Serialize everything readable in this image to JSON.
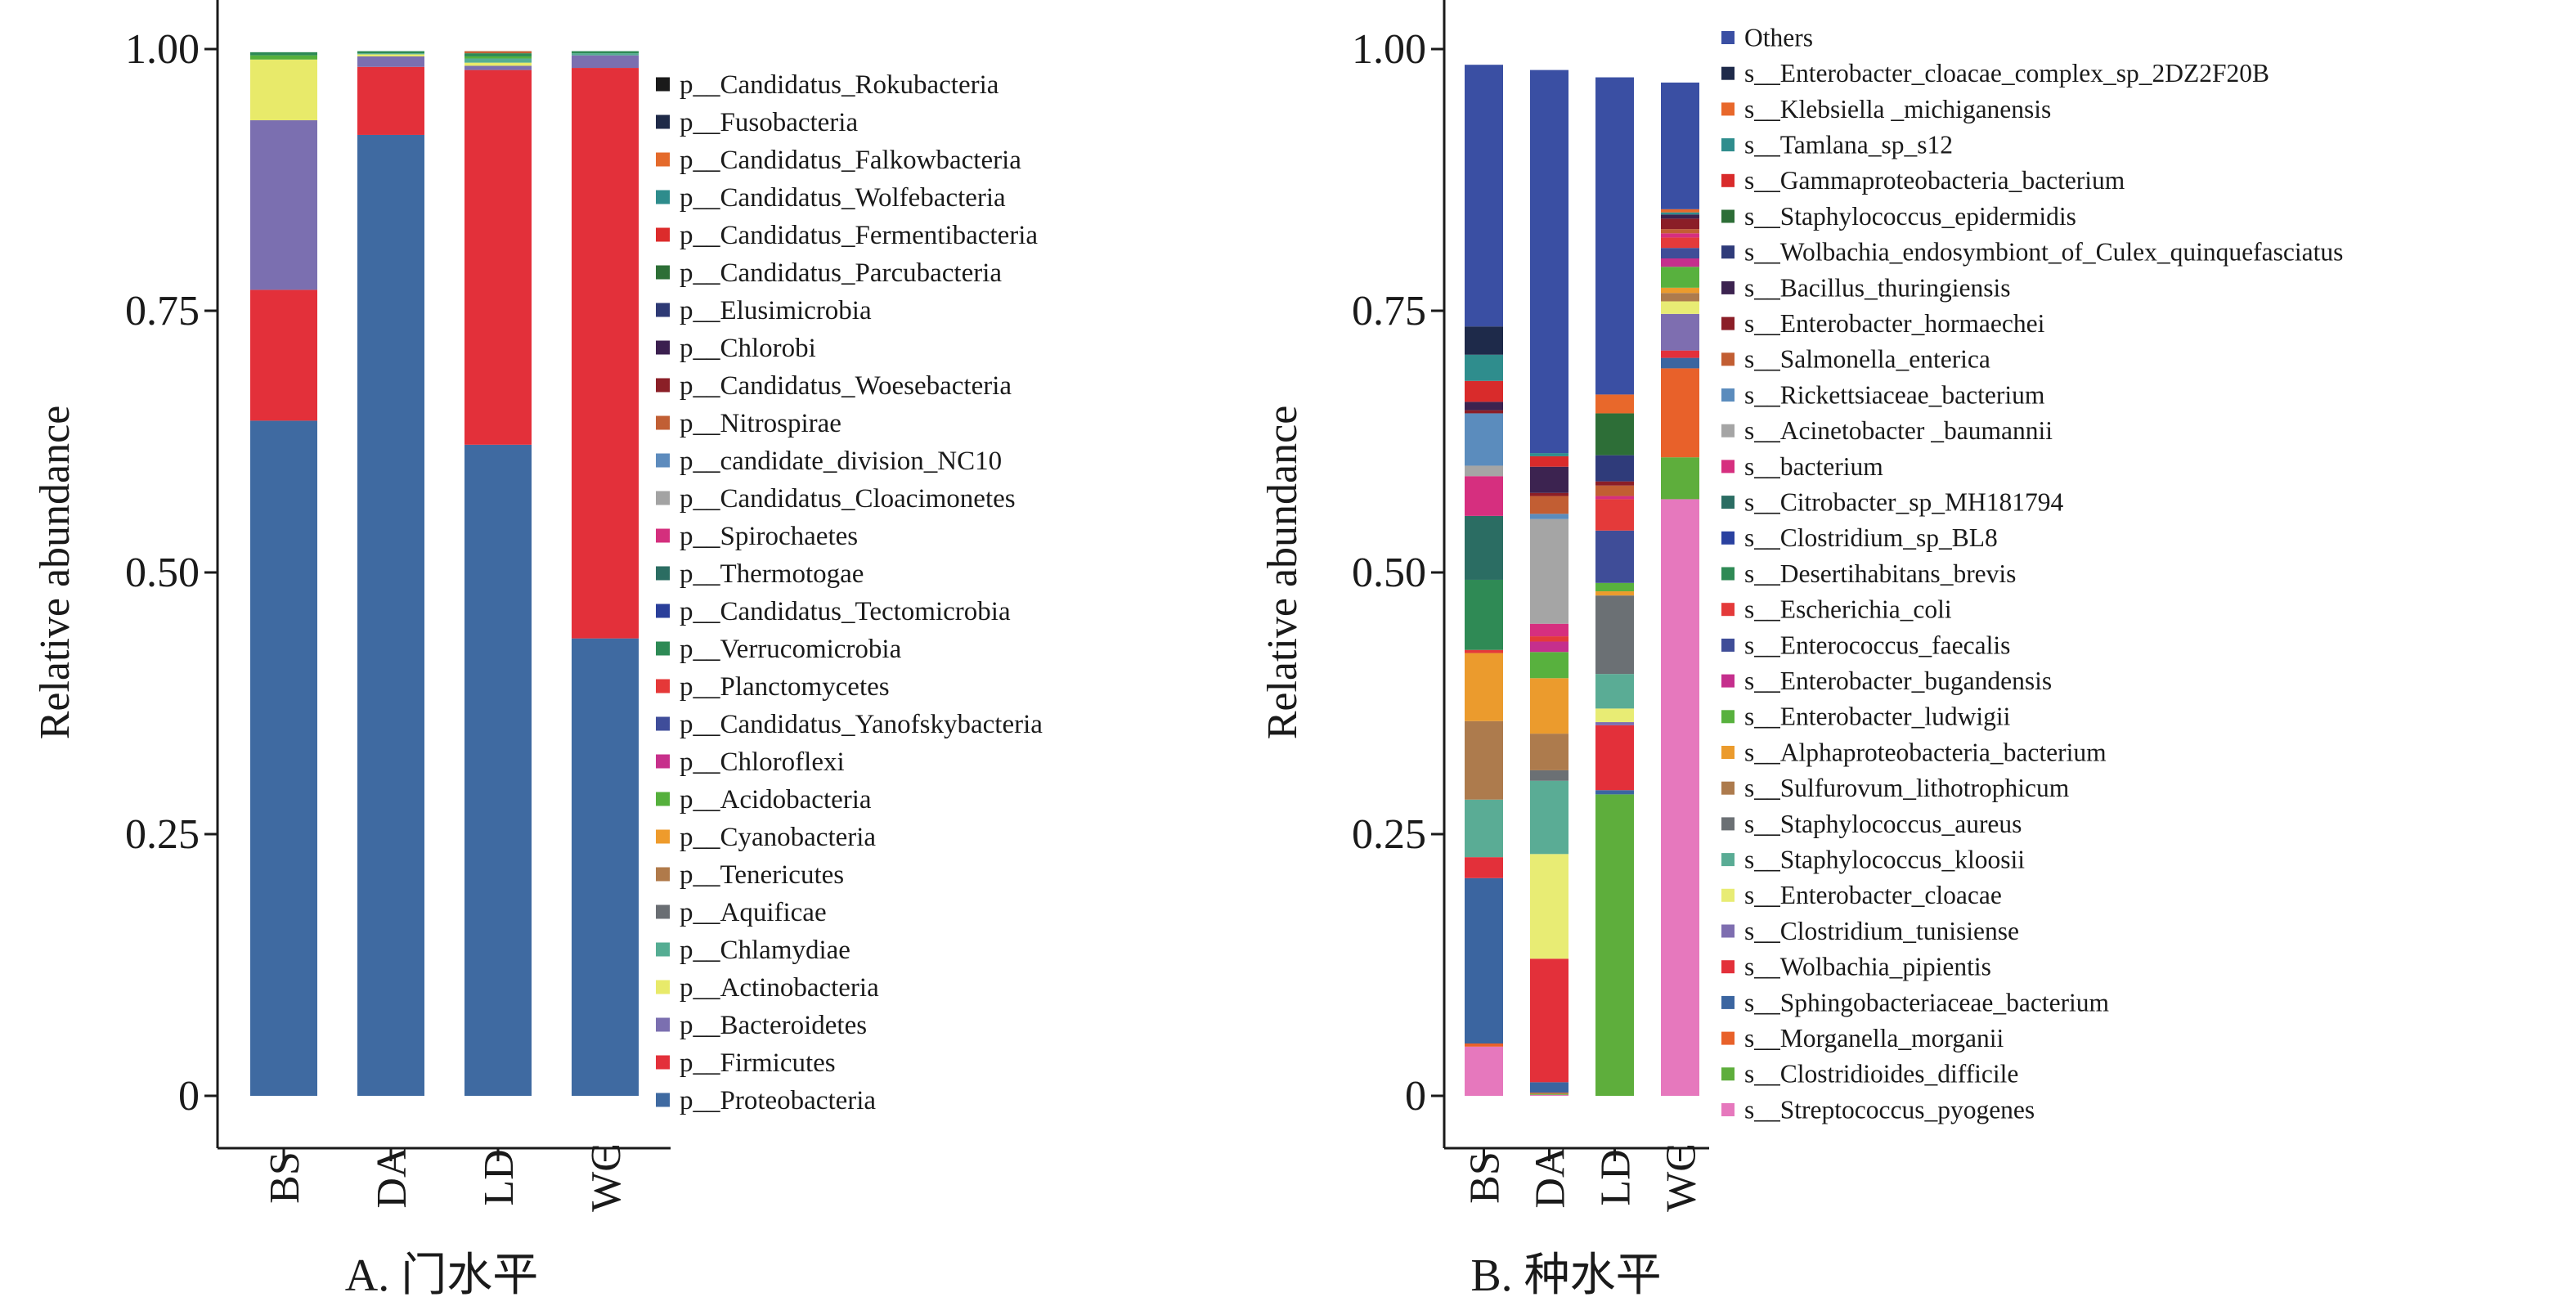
{
  "chart_data": [
    {
      "type": "bar",
      "stacked": true,
      "title": "A. 门水平",
      "xlabel": "",
      "ylabel": "Relative abundance",
      "ylim": [
        0,
        1
      ],
      "yticks": [
        "0",
        "0.25",
        "0.50",
        "0.75",
        "1.00"
      ],
      "ytick_values": [
        0,
        0.25,
        0.5,
        0.75,
        1.0
      ],
      "categories": [
        "BS",
        "DA",
        "LD",
        "WC"
      ],
      "legend_position": "right",
      "legend_order": "top-to-bottom = last series to first series",
      "series": [
        {
          "name": "p__Proteobacteria",
          "color": "#3f6aa1",
          "values": [
            0.645,
            0.918,
            0.622,
            0.437
          ]
        },
        {
          "name": "p__Firmicutes",
          "color": "#e3303a",
          "values": [
            0.125,
            0.065,
            0.358,
            0.545
          ]
        },
        {
          "name": "p__Bacteroidetes",
          "color": "#7b6fb0",
          "values": [
            0.162,
            0.01,
            0.004,
            0.012
          ]
        },
        {
          "name": "p__Actinobacteria",
          "color": "#e8ea6a",
          "values": [
            0.058,
            0.002,
            0.003,
            0.0
          ]
        },
        {
          "name": "p__Chlamydiae",
          "color": "#55ad93",
          "values": [
            0.0,
            0.001,
            0.004,
            0.002
          ]
        },
        {
          "name": "p__Aquificae",
          "color": "#6a6e73",
          "values": [
            0.0,
            0.0,
            0.0,
            0.0
          ]
        },
        {
          "name": "p__Tenericutes",
          "color": "#b07a4a",
          "values": [
            0.0,
            0.0,
            0.0,
            0.0
          ]
        },
        {
          "name": "p__Cyanobacteria",
          "color": "#ee9b2c",
          "values": [
            0.0,
            0.0,
            0.0,
            0.0
          ]
        },
        {
          "name": "p__Acidobacteria",
          "color": "#55b03c",
          "values": [
            0.004,
            0.0,
            0.002,
            0.0
          ]
        },
        {
          "name": "p__Chloroflexi",
          "color": "#c7308b",
          "values": [
            0.0,
            0.0,
            0.0,
            0.0
          ]
        },
        {
          "name": "p__Candidatus_Yanofskybacteria",
          "color": "#3f4d9a",
          "values": [
            0.0,
            0.0,
            0.0,
            0.0
          ]
        },
        {
          "name": "p__Planctomycetes",
          "color": "#e53838",
          "values": [
            0.0,
            0.0,
            0.0,
            0.0
          ]
        },
        {
          "name": "p__Verrucomicrobia",
          "color": "#2d8a55",
          "values": [
            0.003,
            0.002,
            0.003,
            0.002
          ]
        },
        {
          "name": "p__Candidatus_Tectomicrobia",
          "color": "#2a3f9a",
          "values": [
            0.0,
            0.0,
            0.0,
            0.0
          ]
        },
        {
          "name": "p__Thermotogae",
          "color": "#2b6d62",
          "values": [
            0.0,
            0.0,
            0.0,
            0.0
          ]
        },
        {
          "name": "p__Spirochaetes",
          "color": "#d42f7d",
          "values": [
            0.0,
            0.0,
            0.0,
            0.0
          ]
        },
        {
          "name": "p__Candidatus_Cloacimonetes",
          "color": "#a3a3a3",
          "values": [
            0.0,
            0.0,
            0.0,
            0.0
          ]
        },
        {
          "name": "p__candidate_division_NC10",
          "color": "#5d8bbd",
          "values": [
            0.0,
            0.0,
            0.0,
            0.0
          ]
        },
        {
          "name": "p__Nitrospirae",
          "color": "#c15f34",
          "values": [
            0.0,
            0.0,
            0.002,
            0.0
          ]
        },
        {
          "name": "p__Candidatus_Woesebacteria",
          "color": "#8b1f27",
          "values": [
            0.0,
            0.0,
            0.0,
            0.0
          ]
        },
        {
          "name": "p__Chlorobi",
          "color": "#3b1f4f",
          "values": [
            0.0,
            0.0,
            0.0,
            0.0
          ]
        },
        {
          "name": "p__Elusimicrobia",
          "color": "#2e3a75",
          "values": [
            0.0,
            0.0,
            0.0,
            0.0
          ]
        },
        {
          "name": "p__Candidatus_Parcubacteria",
          "color": "#2d6f36",
          "values": [
            0.0,
            0.0,
            0.0,
            0.0
          ]
        },
        {
          "name": "p__Candidatus_Fermentibacteria",
          "color": "#dc2b2b",
          "values": [
            0.0,
            0.0,
            0.0,
            0.0
          ]
        },
        {
          "name": "p__Candidatus_Wolfebacteria",
          "color": "#2e8c8c",
          "values": [
            0.0,
            0.0,
            0.0,
            0.0
          ]
        },
        {
          "name": "p__Candidatus_Falkowbacteria",
          "color": "#e46a2b",
          "values": [
            0.0,
            0.0,
            0.0,
            0.0
          ]
        },
        {
          "name": "p__Fusobacteria",
          "color": "#1f2a48",
          "values": [
            0.0,
            0.0,
            0.0,
            0.0
          ]
        },
        {
          "name": "p__Candidatus_Rokubacteria",
          "color": "#1a1a1a",
          "values": [
            0.0,
            0.0,
            0.0,
            0.0
          ]
        }
      ]
    },
    {
      "type": "bar",
      "stacked": true,
      "title": "B. 种水平",
      "xlabel": "",
      "ylabel": "Relative abundance",
      "ylim": [
        0,
        1
      ],
      "yticks": [
        "0",
        "0.25",
        "0.50",
        "0.75",
        "1.00"
      ],
      "ytick_values": [
        0,
        0.25,
        0.5,
        0.75,
        1.0
      ],
      "categories": [
        "BS",
        "DA",
        "LD",
        "WC"
      ],
      "legend_position": "right",
      "legend_order": "top-to-bottom = last series to first series",
      "series": [
        {
          "name": "s__Streptococcus_pyogenes",
          "color": "#e678bd",
          "values": [
            0.047,
            0.001,
            0.0,
            0.57
          ]
        },
        {
          "name": "s__Clostridioides_difficile",
          "color": "#5eae3c",
          "values": [
            0.0,
            0.001,
            0.288,
            0.04
          ]
        },
        {
          "name": "s__Morganella_morganii",
          "color": "#e8612a",
          "values": [
            0.003,
            0.001,
            0.0,
            0.085
          ]
        },
        {
          "name": "s__Sphingobacteriaceae_bacterium",
          "color": "#3b65a0",
          "values": [
            0.158,
            0.01,
            0.004,
            0.01
          ]
        },
        {
          "name": "s__Wolbachia_pipientis",
          "color": "#e3303a",
          "values": [
            0.02,
            0.118,
            0.062,
            0.007
          ]
        },
        {
          "name": "s__Clostridium_tunisiense",
          "color": "#7e6eb0",
          "values": [
            0.0,
            0.0,
            0.003,
            0.035
          ]
        },
        {
          "name": "s__Enterobacter_cloacae",
          "color": "#e8ec74",
          "values": [
            0.0,
            0.1,
            0.013,
            0.012
          ]
        },
        {
          "name": "s__Staphylococcus_kloosii",
          "color": "#5aac95",
          "values": [
            0.055,
            0.07,
            0.033,
            0.0
          ]
        },
        {
          "name": "s__Staphylococcus_aureus",
          "color": "#6b7074",
          "values": [
            0.0,
            0.01,
            0.075,
            0.0
          ]
        },
        {
          "name": "s__Sulfurovum_lithotrophicum",
          "color": "#ad7b4d",
          "values": [
            0.075,
            0.035,
            0.0,
            0.008
          ]
        },
        {
          "name": "s__Alphaproteobacteria_bacterium",
          "color": "#eb9b2d",
          "values": [
            0.065,
            0.053,
            0.004,
            0.005
          ]
        },
        {
          "name": "s__Enterobacter_ludwigii",
          "color": "#58b13e",
          "values": [
            0.0,
            0.025,
            0.008,
            0.02
          ]
        },
        {
          "name": "s__Enterobacter_bugandensis",
          "color": "#c52f8d",
          "values": [
            0.0,
            0.01,
            0.0,
            0.008
          ]
        },
        {
          "name": "s__Enterococcus_faecalis",
          "color": "#3f4d98",
          "values": [
            0.0,
            0.0,
            0.05,
            0.01
          ]
        },
        {
          "name": "s__Escherichia_coli",
          "color": "#e43a3a",
          "values": [
            0.003,
            0.005,
            0.03,
            0.01
          ]
        },
        {
          "name": "s__Desertihabitans_brevis",
          "color": "#2f8a55",
          "values": [
            0.067,
            0.0,
            0.0,
            0.0
          ]
        },
        {
          "name": "s__Clostridium_sp_BL8",
          "color": "#2a41a0",
          "values": [
            0.0,
            0.0,
            0.0,
            0.0
          ]
        },
        {
          "name": "s__Citrobacter_sp_MH181794",
          "color": "#2b6d63",
          "values": [
            0.061,
            0.0,
            0.0,
            0.0
          ]
        },
        {
          "name": "s__bacterium",
          "color": "#d62f7f",
          "values": [
            0.038,
            0.012,
            0.003,
            0.004
          ]
        },
        {
          "name": "s__Acinetobacter _baumannii",
          "color": "#a5a5a5",
          "values": [
            0.01,
            0.1,
            0.0,
            0.0
          ]
        },
        {
          "name": "s__Rickettsiaceae_bacterium",
          "color": "#5b8cbd",
          "values": [
            0.05,
            0.005,
            0.0,
            0.0
          ]
        },
        {
          "name": "s__Salmonella_enterica",
          "color": "#c25e33",
          "values": [
            0.0,
            0.017,
            0.01,
            0.004
          ]
        },
        {
          "name": "s__Enterobacter_hormaechei",
          "color": "#8b1e27",
          "values": [
            0.003,
            0.003,
            0.004,
            0.01
          ]
        },
        {
          "name": "s__Bacillus_thuringiensis",
          "color": "#3c2350",
          "values": [
            0.008,
            0.025,
            0.0,
            0.004
          ]
        },
        {
          "name": "s__Wolbachia_endosymbiont_of_Culex_quinquefasciatus",
          "color": "#2f3b7a",
          "values": [
            0.0,
            0.0,
            0.025,
            0.0
          ]
        },
        {
          "name": "s__Staphylococcus_epidermidis",
          "color": "#2d6e37",
          "values": [
            0.0,
            0.0,
            0.04,
            0.0
          ]
        },
        {
          "name": "s__Gammaproteobacteria_bacterium",
          "color": "#d92b2b",
          "values": [
            0.02,
            0.01,
            0.0,
            0.0
          ]
        },
        {
          "name": "s__Tamlana_sp_s12",
          "color": "#2f8d8d",
          "values": [
            0.025,
            0.003,
            0.0,
            0.002
          ]
        },
        {
          "name": "s__Klebsiella _michiganensis",
          "color": "#e8682b",
          "values": [
            0.0,
            0.0,
            0.018,
            0.003
          ]
        },
        {
          "name": "s__Enterobacter_cloacae_complex_sp_2DZ2F20B",
          "color": "#1e2a4a",
          "values": [
            0.027,
            0.0,
            0.0,
            0.0
          ]
        },
        {
          "name": "Others",
          "color": "#3a4fa3",
          "values": [
            0.25,
            0.366,
            0.303,
            0.121
          ]
        }
      ]
    }
  ]
}
